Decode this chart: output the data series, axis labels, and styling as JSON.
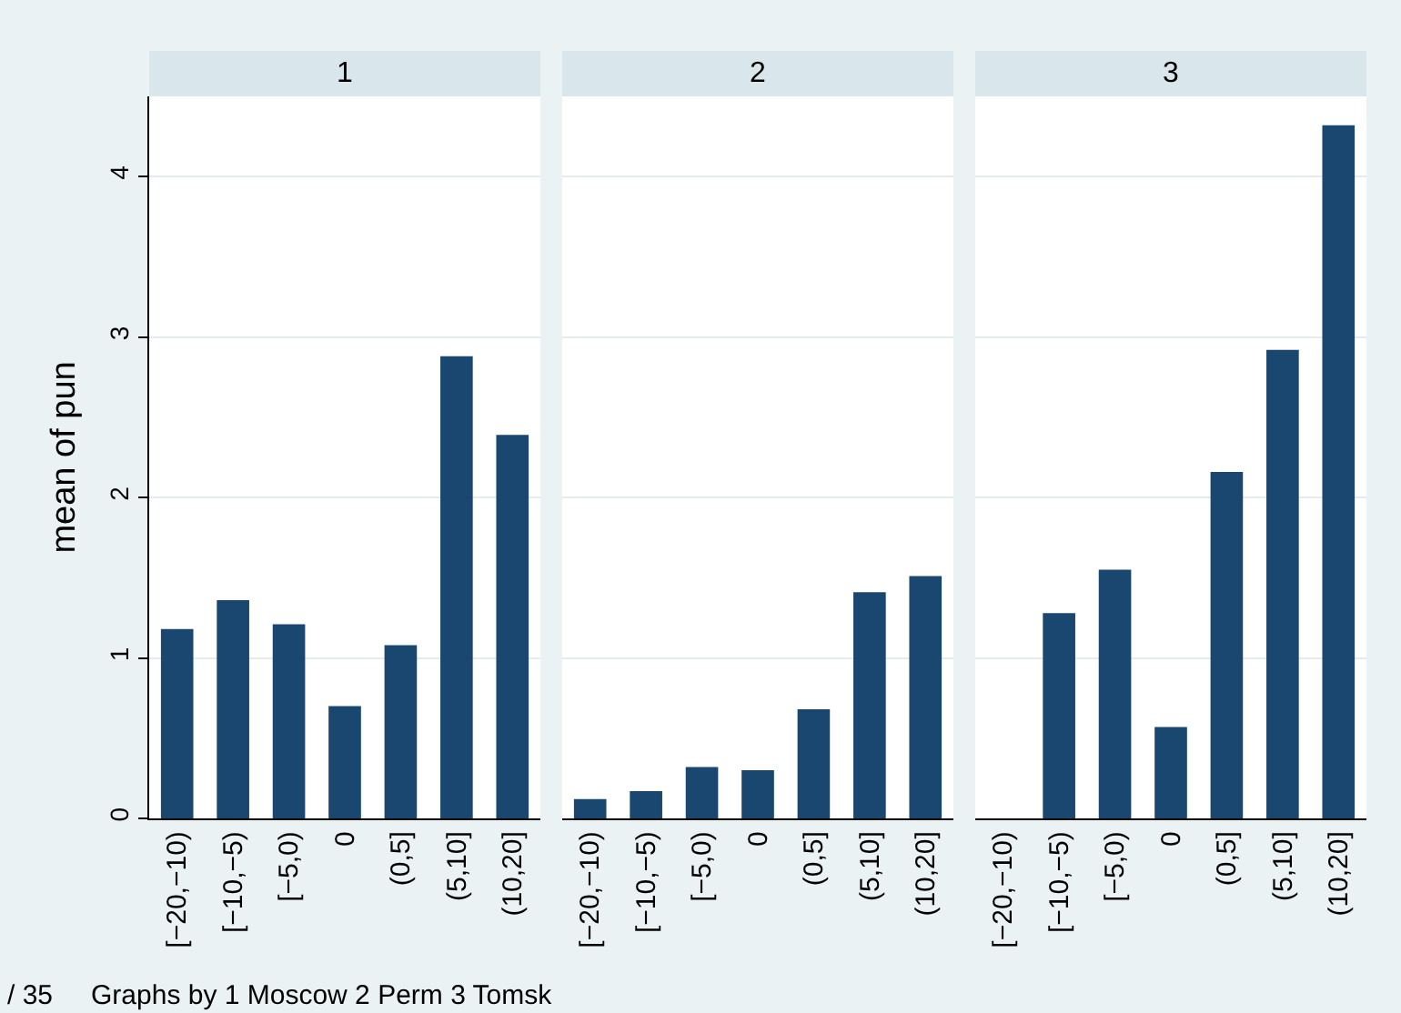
{
  "chart_data": [
    {
      "type": "bar",
      "title": "1",
      "ylabel": "mean of pun",
      "categories": [
        "[−20,−10)",
        "[−10,−5)",
        "[−5,0)",
        "0",
        "(0,5]",
        "(5,10]",
        "(10,20]"
      ],
      "values": [
        1.18,
        1.36,
        1.21,
        0.7,
        1.08,
        2.88,
        2.39
      ],
      "color": "#1a476f",
      "ylim": [
        0,
        4.5
      ],
      "yticks": [
        0,
        1,
        2,
        3,
        4
      ],
      "grid": "y",
      "annotations": [
        "/ 35",
        "Graphs by 1 Moscow 2 Perm 3 Tomsk"
      ]
    },
    {
      "type": "bar",
      "title": "2",
      "categories": [
        "[−20,−10)",
        "[−10,−5)",
        "[−5,0)",
        "0",
        "(0,5]",
        "(5,10]",
        "(10,20]"
      ],
      "values": [
        0.12,
        0.17,
        0.32,
        0.3,
        0.68,
        1.41,
        1.51
      ],
      "color": "#1a476f",
      "ylim": [
        0,
        4.5
      ],
      "yticks": [
        0,
        1,
        2,
        3,
        4
      ],
      "grid": "y",
      "tick_labels": "x"
    },
    {
      "type": "bar",
      "title": "3",
      "categories": [
        "[−20,−10)",
        "[−10,−5)",
        "[−5,0)",
        "0",
        "(0,5]",
        "(5,10]",
        "(10,20]"
      ],
      "values": [
        null,
        1.28,
        1.55,
        0.57,
        2.16,
        2.92,
        4.32
      ],
      "color": "#1a476f",
      "ylim": [
        0,
        4.5
      ],
      "yticks": [
        0,
        1,
        2,
        3,
        4
      ],
      "grid": "y",
      "tick_labels": "x"
    }
  ]
}
